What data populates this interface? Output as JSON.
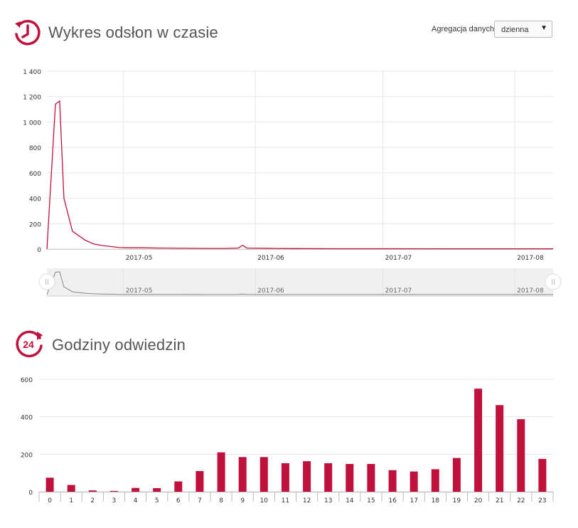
{
  "section1": {
    "title": "Wykres odsłon w czasie",
    "aggregation_label": "Agregacja danych:",
    "aggregation_value": "dzienna",
    "icon": "history-clock-icon"
  },
  "section2": {
    "title": "Godziny odwiedzin",
    "icon": "24-hours-icon"
  },
  "colors": {
    "accent": "#c0103c",
    "grid": "#e6e6e6",
    "navigator_bg": "#f0f0f0"
  },
  "chart_data": [
    {
      "type": "line",
      "title": "",
      "xlabel": "",
      "ylabel": "",
      "x_ticks": [
        "2017-05",
        "2017-06",
        "2017-07",
        "2017-08"
      ],
      "ylim": [
        0,
        1400
      ],
      "y_ticks": [
        0,
        200,
        400,
        600,
        800,
        1000,
        1200,
        1400
      ],
      "y_tick_labels": [
        "0",
        "200",
        "400",
        "600",
        "800",
        "1 000",
        "1 200",
        "1 400"
      ],
      "x_range": [
        "2017-04-13",
        "2017-08-10"
      ],
      "series": [
        {
          "x": [
            "2017-04-13",
            "2017-04-15",
            "2017-04-16",
            "2017-04-17",
            "2017-04-19",
            "2017-04-22",
            "2017-04-24",
            "2017-04-26",
            "2017-04-28",
            "2017-04-30",
            "2017-05-02",
            "2017-05-05",
            "2017-05-10",
            "2017-05-15",
            "2017-05-20",
            "2017-05-25",
            "2017-05-28",
            "2017-05-29",
            "2017-05-30",
            "2017-06-05",
            "2017-06-10",
            "2017-06-20",
            "2017-07-01",
            "2017-07-15",
            "2017-08-01",
            "2017-08-10"
          ],
          "values": [
            0,
            1140,
            1165,
            400,
            140,
            70,
            40,
            28,
            20,
            12,
            10,
            10,
            8,
            6,
            5,
            5,
            8,
            30,
            8,
            5,
            4,
            3,
            3,
            2,
            2,
            2
          ]
        }
      ],
      "grid": true,
      "navigator": true
    },
    {
      "type": "bar",
      "title": "",
      "xlabel": "",
      "ylabel": "",
      "categories": [
        "0",
        "1",
        "2",
        "3",
        "4",
        "5",
        "6",
        "7",
        "8",
        "9",
        "10",
        "11",
        "12",
        "13",
        "14",
        "15",
        "16",
        "17",
        "18",
        "19",
        "20",
        "21",
        "22",
        "23"
      ],
      "values": [
        75,
        36,
        7,
        4,
        20,
        19,
        55,
        110,
        210,
        185,
        185,
        152,
        163,
        152,
        148,
        148,
        115,
        108,
        120,
        180,
        550,
        462,
        387,
        175
      ],
      "ylim": [
        0,
        600
      ],
      "y_ticks": [
        0,
        200,
        400,
        600
      ],
      "y_tick_labels": [
        "0",
        "200",
        "400",
        "600"
      ],
      "grid": true
    }
  ]
}
